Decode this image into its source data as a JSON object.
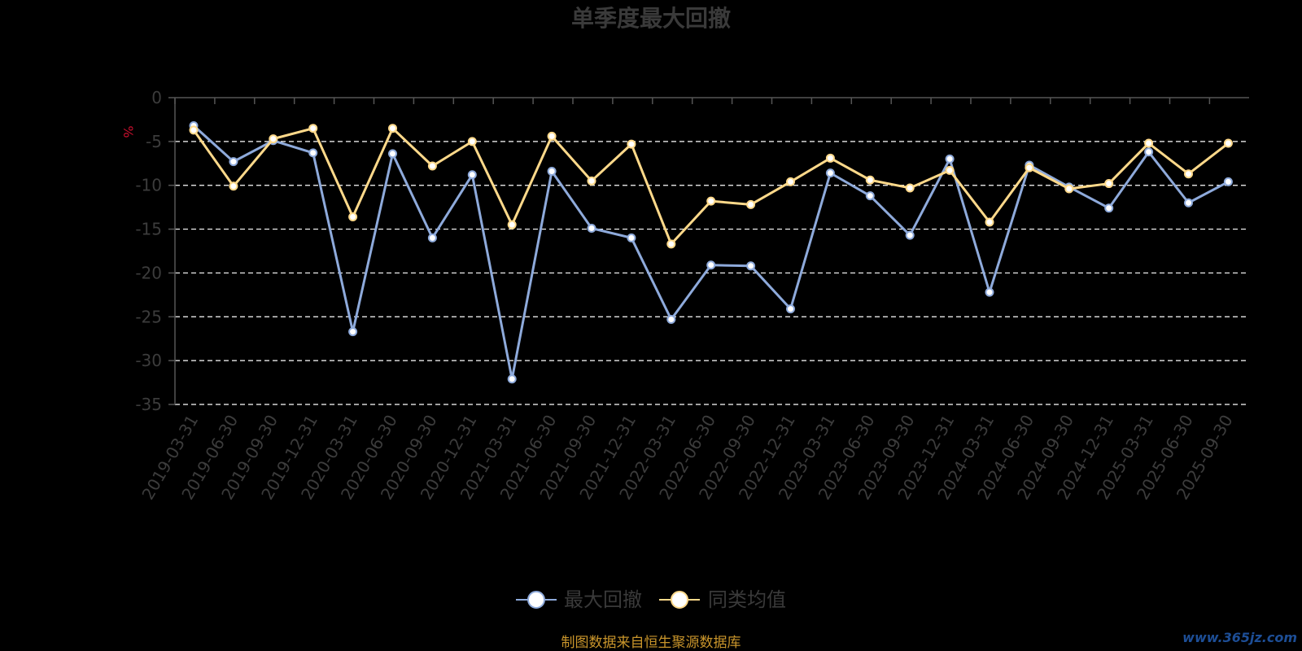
{
  "colors": {
    "background": "#000000",
    "series_max_drawdown": "#8eaadb",
    "series_peer_average": "#ffd98a",
    "marker_fill": "#ffffff",
    "gridline": "#ffffff",
    "axis": "#555555",
    "source_text": "#c9952b",
    "unit_text": "#c8102e",
    "watermark": "#1d4e96"
  },
  "source_note": "制图数据来自恒生聚源数据库",
  "watermark": "www.365jz.com",
  "chart_data": {
    "type": "line",
    "title": "单季度最大回撤",
    "ylabel": "%",
    "xlabel": "",
    "ylim": [
      -35,
      0
    ],
    "yticks": [
      0,
      -5,
      -10,
      -15,
      -20,
      -25,
      -30,
      -35
    ],
    "grid": true,
    "grid_style": "dashed",
    "legend_position": "bottom-center",
    "categories": [
      "2019-03-31",
      "2019-06-30",
      "2019-09-30",
      "2019-12-31",
      "2020-03-31",
      "2020-06-30",
      "2020-09-30",
      "2020-12-31",
      "2021-03-31",
      "2021-06-30",
      "2021-09-30",
      "2021-12-31",
      "2022-03-31",
      "2022-06-30",
      "2022-09-30",
      "2022-12-31",
      "2023-03-31",
      "2023-06-30",
      "2023-09-30",
      "2023-12-31",
      "2024-03-31",
      "2024-06-30",
      "2024-09-30",
      "2024-12-31",
      "2025-03-31",
      "2025-06-30",
      "2025-09-30"
    ],
    "series": [
      {
        "name": "最大回撤",
        "color": "#8eaadb",
        "values": [
          -3.2,
          -7.3,
          -4.9,
          -6.3,
          -26.7,
          -6.4,
          -16.0,
          -8.8,
          -32.1,
          -8.4,
          -14.9,
          -16.0,
          -25.3,
          -19.1,
          -19.2,
          -24.1,
          -8.6,
          -11.2,
          -15.7,
          -7.0,
          -22.2,
          -7.7,
          -10.2,
          -12.6,
          -6.2,
          -12.0,
          -9.6
        ]
      },
      {
        "name": "同类均值",
        "color": "#ffd98a",
        "values": [
          -3.7,
          -10.1,
          -4.7,
          -3.5,
          -13.6,
          -3.5,
          -7.8,
          -5.0,
          -14.5,
          -4.4,
          -9.5,
          -5.3,
          -16.7,
          -11.8,
          -12.2,
          -9.6,
          -6.9,
          -9.4,
          -10.3,
          -8.3,
          -14.2,
          -8.0,
          -10.4,
          -9.8,
          -5.2,
          -8.7,
          -5.2
        ]
      }
    ]
  }
}
